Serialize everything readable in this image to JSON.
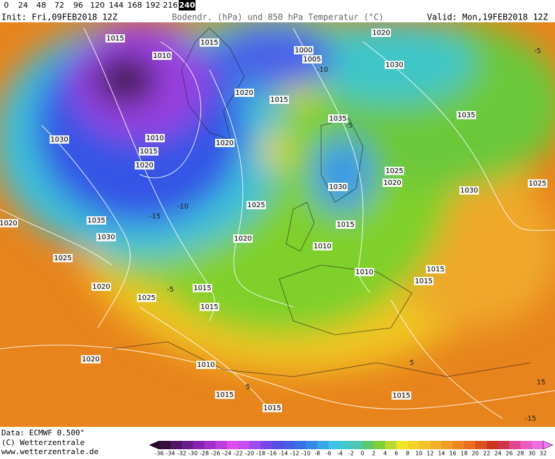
{
  "tabs": [
    0,
    24,
    48,
    72,
    96,
    120,
    144,
    168,
    192,
    216,
    240
  ],
  "active_tab": 10,
  "header": {
    "init": "Init: Fri,09FEB2018 12Z",
    "title": "Bodendr. (hPa) und 850 hPa Temperatur (°C)",
    "valid": "Valid: Mon,19FEB2018 12Z"
  },
  "map": {
    "isobar_labels": [
      1015,
      1010,
      1015,
      1000,
      1005,
      1020,
      1030,
      1020,
      1015,
      1035,
      1035,
      1030,
      1010,
      1015,
      1020,
      1020,
      1025,
      1020,
      1030,
      1030,
      1025,
      1025,
      1035,
      1015,
      1030,
      1020,
      1020,
      1010,
      1025,
      1010,
      1015,
      1015,
      1020,
      1015,
      1025,
      1015,
      1010,
      1020,
      1015,
      1015,
      1015
    ],
    "isotherm_labels": [
      -10,
      -5,
      -15,
      5,
      -5,
      15,
      -10,
      -5,
      5,
      -15
    ]
  },
  "footer": {
    "data": "Data: ECMWF  0.500°",
    "copyright": "(C) Wetterzentrale",
    "url": "www.wetterzentrale.de"
  },
  "colorbar": {
    "labels": [
      -36,
      -34,
      -32,
      -30,
      -28,
      -26,
      -24,
      -22,
      -20,
      -18,
      -16,
      -14,
      -12,
      -10,
      -8,
      -6,
      -4,
      -2,
      0,
      2,
      4,
      6,
      8,
      10,
      12,
      14,
      16,
      18,
      20,
      22,
      24,
      26,
      28,
      30,
      32
    ]
  }
}
